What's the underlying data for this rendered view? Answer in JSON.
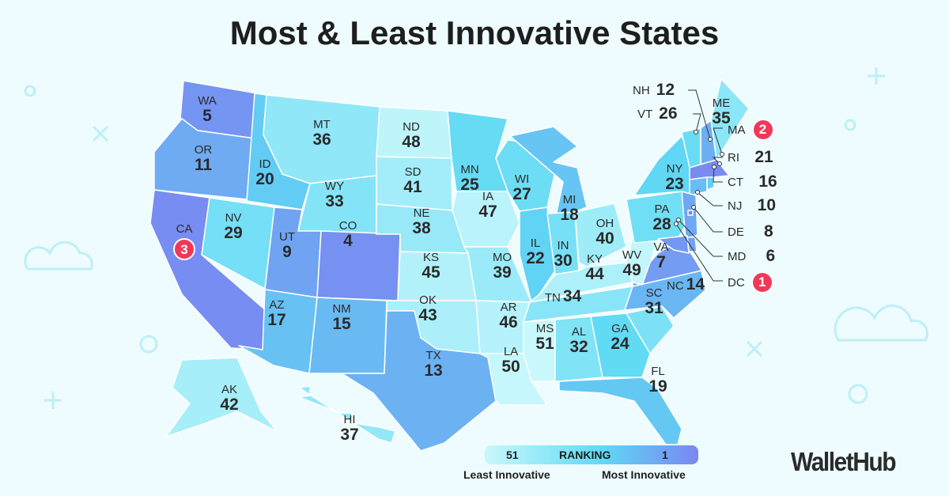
{
  "title": "Most & Least Innovative States",
  "states": [
    {
      "abbr": "WA",
      "rank": 5
    },
    {
      "abbr": "OR",
      "rank": 11
    },
    {
      "abbr": "CA",
      "rank": 3
    },
    {
      "abbr": "NV",
      "rank": 29
    },
    {
      "abbr": "ID",
      "rank": 20
    },
    {
      "abbr": "MT",
      "rank": 36
    },
    {
      "abbr": "WY",
      "rank": 33
    },
    {
      "abbr": "UT",
      "rank": 9
    },
    {
      "abbr": "CO",
      "rank": 4
    },
    {
      "abbr": "AZ",
      "rank": 17
    },
    {
      "abbr": "NM",
      "rank": 15
    },
    {
      "abbr": "ND",
      "rank": 48
    },
    {
      "abbr": "SD",
      "rank": 41
    },
    {
      "abbr": "NE",
      "rank": 38
    },
    {
      "abbr": "KS",
      "rank": 45
    },
    {
      "abbr": "OK",
      "rank": 43
    },
    {
      "abbr": "TX",
      "rank": 13
    },
    {
      "abbr": "MN",
      "rank": 25
    },
    {
      "abbr": "IA",
      "rank": 47
    },
    {
      "abbr": "MO",
      "rank": 39
    },
    {
      "abbr": "AR",
      "rank": 46
    },
    {
      "abbr": "LA",
      "rank": 50
    },
    {
      "abbr": "WI",
      "rank": 27
    },
    {
      "abbr": "IL",
      "rank": 22
    },
    {
      "abbr": "MI",
      "rank": 18
    },
    {
      "abbr": "IN",
      "rank": 30
    },
    {
      "abbr": "OH",
      "rank": 40
    },
    {
      "abbr": "KY",
      "rank": 44
    },
    {
      "abbr": "TN",
      "rank": 34
    },
    {
      "abbr": "MS",
      "rank": 51
    },
    {
      "abbr": "AL",
      "rank": 32
    },
    {
      "abbr": "GA",
      "rank": 24
    },
    {
      "abbr": "FL",
      "rank": 19
    },
    {
      "abbr": "SC",
      "rank": 31
    },
    {
      "abbr": "NC",
      "rank": 14
    },
    {
      "abbr": "VA",
      "rank": 7
    },
    {
      "abbr": "WV",
      "rank": 49
    },
    {
      "abbr": "PA",
      "rank": 28
    },
    {
      "abbr": "NY",
      "rank": 23
    },
    {
      "abbr": "ME",
      "rank": 35
    },
    {
      "abbr": "AK",
      "rank": 42
    },
    {
      "abbr": "HI",
      "rank": 37
    }
  ],
  "northeast": [
    {
      "abbr": "NH",
      "rank": 12
    },
    {
      "abbr": "VT",
      "rank": 26
    },
    {
      "abbr": "MA",
      "rank": 2
    },
    {
      "abbr": "RI",
      "rank": 21
    },
    {
      "abbr": "CT",
      "rank": 16
    },
    {
      "abbr": "NJ",
      "rank": 10
    },
    {
      "abbr": "DE",
      "rank": 8
    },
    {
      "abbr": "MD",
      "rank": 6
    },
    {
      "abbr": "DC",
      "rank": 1
    }
  ],
  "legend": {
    "low": "51",
    "label": "RANKING",
    "high": "1",
    "left_caption": "Least Innovative",
    "right_caption": "Most Innovative"
  },
  "colors": {
    "least": "#c9f8fc",
    "mid": "#5fd9f4",
    "most": "#7a86f1",
    "badge": "#f2385a"
  },
  "brand": "WalletHub"
}
